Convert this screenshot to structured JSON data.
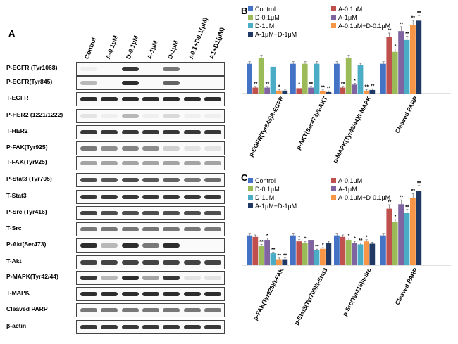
{
  "panel_a": {
    "letter": "A",
    "lanes": [
      "Control",
      "A-0.1μM",
      "D-0.1μM",
      "A-1μM",
      "D-1μM",
      "A0.1+D0.1(μM)",
      "A1+D1(μM)"
    ],
    "blots": [
      {
        "label": "P-EGFR (Tyr1068)",
        "intensity": [
          0.05,
          0.0,
          0.9,
          0.0,
          0.6,
          0.0,
          0.0
        ]
      },
      {
        "label": "P-EGFR(Tyr845)",
        "intensity": [
          0.3,
          0.0,
          0.95,
          0.0,
          0.7,
          0.0,
          0.0
        ]
      },
      {
        "label": "T-EGFR",
        "intensity": [
          0.95,
          0.95,
          0.95,
          0.95,
          0.95,
          0.95,
          0.95
        ]
      },
      {
        "label": "P-HER2 (1221/1222)",
        "intensity": [
          0.1,
          0.05,
          0.3,
          0.05,
          0.15,
          0.05,
          0.05
        ]
      },
      {
        "label": "T-HER2",
        "intensity": [
          0.9,
          0.9,
          0.9,
          0.9,
          0.9,
          0.9,
          0.9
        ]
      },
      {
        "label": "P-FAK(Tyr925)",
        "intensity": [
          0.6,
          0.5,
          0.55,
          0.5,
          0.2,
          0.1,
          0.1
        ]
      },
      {
        "label": "T-FAK(Tyr925)",
        "intensity": [
          0.4,
          0.4,
          0.4,
          0.4,
          0.4,
          0.4,
          0.4
        ]
      },
      {
        "label": "P-Stat3 (Tyr705)",
        "intensity": [
          0.8,
          0.75,
          0.8,
          0.75,
          0.7,
          0.6,
          0.65
        ]
      },
      {
        "label": "T-Stat3",
        "intensity": [
          0.9,
          0.9,
          0.9,
          0.9,
          0.9,
          0.9,
          0.9
        ]
      },
      {
        "label": "P-Src (Tyr416)",
        "intensity": [
          0.85,
          0.8,
          0.8,
          0.8,
          0.8,
          0.8,
          0.8
        ]
      },
      {
        "label": "T-Src",
        "intensity": [
          0.6,
          0.6,
          0.6,
          0.6,
          0.6,
          0.6,
          0.6
        ]
      },
      {
        "label": "P-Akt(Ser473)",
        "intensity": [
          0.95,
          0.3,
          0.95,
          0.6,
          0.95,
          0.0,
          0.0
        ]
      },
      {
        "label": "T-Akt",
        "intensity": [
          0.85,
          0.85,
          0.85,
          0.85,
          0.85,
          0.85,
          0.85
        ]
      },
      {
        "label": "P-MAPK(Tyr42/44)",
        "intensity": [
          0.9,
          0.3,
          0.95,
          0.4,
          0.9,
          0.1,
          0.1
        ]
      },
      {
        "label": "T-MAPK",
        "intensity": [
          0.95,
          0.95,
          0.95,
          0.95,
          0.95,
          0.95,
          0.95
        ]
      },
      {
        "label": "Cleaved PARP",
        "intensity": [
          0.6,
          0.6,
          0.6,
          0.6,
          0.6,
          0.6,
          0.6
        ]
      },
      {
        "label": "β-actin",
        "intensity": [
          0.9,
          0.9,
          0.9,
          0.9,
          0.9,
          0.9,
          0.9
        ]
      }
    ]
  },
  "colors": [
    "#4472c4",
    "#c0504d",
    "#9bbb59",
    "#8064a2",
    "#4bacc6",
    "#f79646",
    "#1f3864"
  ],
  "chart_data": [
    {
      "panel": "B",
      "type": "bar",
      "legend": [
        "Control",
        "A-0.1μM",
        "D-0.1μM",
        "A-1μM",
        "D-1μM",
        "A-0.1μM+D-0.1μM",
        "A-1μM+D-1μM"
      ],
      "categories": [
        "p-EGFR(Tyr845)/t-EGFR",
        "p-AKT(Ser473)/t-AKT",
        "p-MAPK(Tyr42/44)/t-MAPK",
        "Cleaved PARP"
      ],
      "series": [
        {
          "name": "Control",
          "values": [
            1.0,
            1.0,
            1.0,
            1.0
          ]
        },
        {
          "name": "A-0.1μM",
          "values": [
            0.2,
            0.18,
            0.2,
            1.9
          ]
        },
        {
          "name": "D-0.1μM",
          "values": [
            1.2,
            1.0,
            1.2,
            1.4
          ]
        },
        {
          "name": "A-1μM",
          "values": [
            0.2,
            0.2,
            0.3,
            2.1
          ]
        },
        {
          "name": "D-1μM",
          "values": [
            0.9,
            1.0,
            0.95,
            1.8
          ]
        },
        {
          "name": "A-0.1μM+D-0.1μM",
          "values": [
            0.1,
            0.08,
            0.1,
            2.3
          ]
        },
        {
          "name": "A-1μM+D-1μM",
          "values": [
            0.1,
            0.05,
            0.12,
            2.45
          ]
        }
      ],
      "annotations": [
        [
          "",
          "**",
          "",
          "**",
          "",
          "*",
          ""
        ],
        [
          "",
          "*",
          "",
          "**",
          "",
          "**",
          "**"
        ],
        [
          "",
          "**",
          "",
          "*",
          "",
          "**",
          "**"
        ],
        [
          "",
          "**",
          "*",
          "**",
          "**",
          "**",
          "**"
        ]
      ],
      "ylim": [
        0,
        2.6
      ]
    },
    {
      "panel": "C",
      "type": "bar",
      "legend": [
        "Control",
        "A-0.1μM",
        "D-0.1μM",
        "A-1μM",
        "D-1μM",
        "A-0.1μM+D-0.1μM",
        "A-1μM+D-1μM"
      ],
      "categories": [
        "p-FAK(Tyr925)/t-FAK",
        "p-Stat3(Tyr705)/t-Stat3",
        "p-Src(Tyr416)/t-Src",
        "Cleaved PARP"
      ],
      "series": [
        {
          "name": "Control",
          "values": [
            1.0,
            1.0,
            1.0,
            1.0
          ]
        },
        {
          "name": "A-0.1μM",
          "values": [
            0.95,
            0.8,
            0.95,
            1.9
          ]
        },
        {
          "name": "D-0.1μM",
          "values": [
            0.65,
            0.75,
            0.85,
            1.45
          ]
        },
        {
          "name": "A-1μM",
          "values": [
            0.85,
            0.85,
            0.75,
            2.05
          ]
        },
        {
          "name": "D-1μM",
          "values": [
            0.4,
            0.5,
            0.7,
            1.75
          ]
        },
        {
          "name": "A-0.1μM+D-0.1μM",
          "values": [
            0.2,
            0.55,
            0.8,
            2.25
          ]
        },
        {
          "name": "A-1μM+D-1μM",
          "values": [
            0.2,
            0.75,
            0.72,
            2.5
          ]
        }
      ],
      "annotations": [
        [
          "",
          "",
          "**",
          "*",
          "**",
          "**",
          "**"
        ],
        [
          "",
          "*",
          "*",
          "",
          "**",
          "*",
          ""
        ],
        [
          "",
          "",
          "*",
          "*",
          "**",
          "*",
          ""
        ],
        [
          "",
          "**",
          "*",
          "**",
          "**",
          "**",
          "**"
        ]
      ],
      "ylim": [
        0,
        2.6
      ]
    }
  ]
}
